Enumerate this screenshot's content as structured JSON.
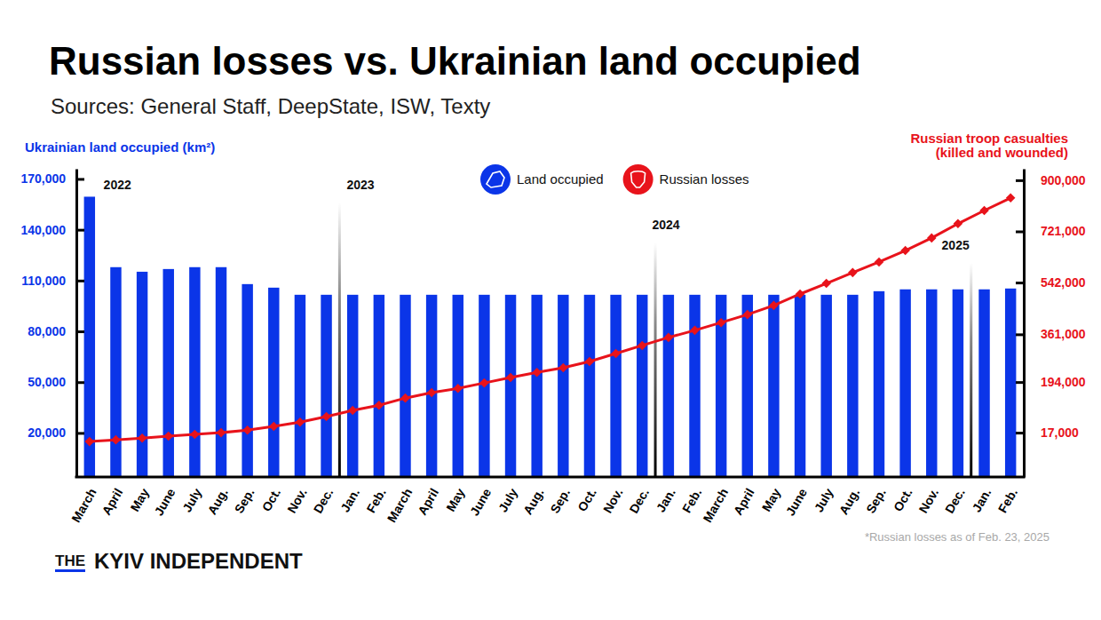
{
  "chart_data": {
    "type": "bar",
    "title": "Russian losses vs. Ukrainian land occupied",
    "subtitle": "Sources: General Staff, DeepState, ISW, Texty",
    "y_label": "Ukrainian land occupied (km²)",
    "y2_label": [
      "Russian troop casualties",
      "(killed and wounded)"
    ],
    "legend": "top",
    "categories": [
      "March",
      "April",
      "May",
      "June",
      "July",
      "Aug.",
      "Sep.",
      "Oct.",
      "Nov.",
      "Dec.",
      "Jan.",
      "Feb.",
      "March",
      "April",
      "May",
      "June",
      "July",
      "Aug.",
      "Sep.",
      "Oct.",
      "Nov.",
      "Dec.",
      "Jan.",
      "Feb.",
      "March",
      "April",
      "May",
      "June",
      "July",
      "Aug.",
      "Sep.",
      "Oct.",
      "Nov.",
      "Dec.",
      "Jan.",
      "Feb."
    ],
    "series": [
      {
        "name": "Land occupied",
        "type": "bar",
        "color": "#0b35e8",
        "values": [
          159500,
          117900,
          115200,
          116800,
          117900,
          117900,
          107900,
          105800,
          101600,
          101600,
          101600,
          101600,
          101600,
          101600,
          101600,
          101600,
          101600,
          101600,
          101600,
          101600,
          101600,
          101600,
          101600,
          101600,
          101600,
          101600,
          101600,
          101600,
          101600,
          101600,
          103700,
          104800,
          104800,
          104800,
          104800,
          105300
        ]
      },
      {
        "name": "Russian losses",
        "type": "line",
        "color": "#e8131b",
        "marker": "diamond",
        "axis": "y2",
        "values": [
          -14000,
          -8000,
          -2000,
          5000,
          11000,
          17000,
          26000,
          39000,
          54000,
          73000,
          95000,
          113000,
          138000,
          157000,
          172000,
          191000,
          210000,
          228000,
          244000,
          266000,
          294000,
          322000,
          350000,
          375000,
          402000,
          430000,
          462000,
          502000,
          539000,
          577000,
          614000,
          654000,
          698000,
          748000,
          794000,
          838000
        ]
      }
    ],
    "ylim": [
      -6000,
      176000
    ],
    "yticks": [
      {
        "value": 20000,
        "label": "20,000"
      },
      {
        "value": 50000,
        "label": "50,000"
      },
      {
        "value": 80000,
        "label": "80,000"
      },
      {
        "value": 110000,
        "label": "110,000"
      },
      {
        "value": 140000,
        "label": "140,000"
      },
      {
        "value": 170000,
        "label": "170,000"
      }
    ],
    "y2lim": [
      -138000,
      940000
    ],
    "y2ticks": [
      {
        "value": 17000,
        "label": "17,000"
      },
      {
        "value": 194000,
        "label": "194,000"
      },
      {
        "value": 361000,
        "label": "361,000"
      },
      {
        "value": 542000,
        "label": "542,000"
      },
      {
        "value": 721000,
        "label": "721,000"
      },
      {
        "value": 900000,
        "label": "900,000"
      }
    ],
    "annotations": [
      {
        "text": "2022",
        "x": 0
      },
      {
        "text": "2023",
        "x": 10
      },
      {
        "text": "2024",
        "x": 22
      },
      {
        "text": "2025",
        "x": 34
      }
    ],
    "note": "*Russian losses as of Feb. 23, 2025",
    "brand": [
      "THE",
      "KYIV INDEPENDENT"
    ]
  }
}
